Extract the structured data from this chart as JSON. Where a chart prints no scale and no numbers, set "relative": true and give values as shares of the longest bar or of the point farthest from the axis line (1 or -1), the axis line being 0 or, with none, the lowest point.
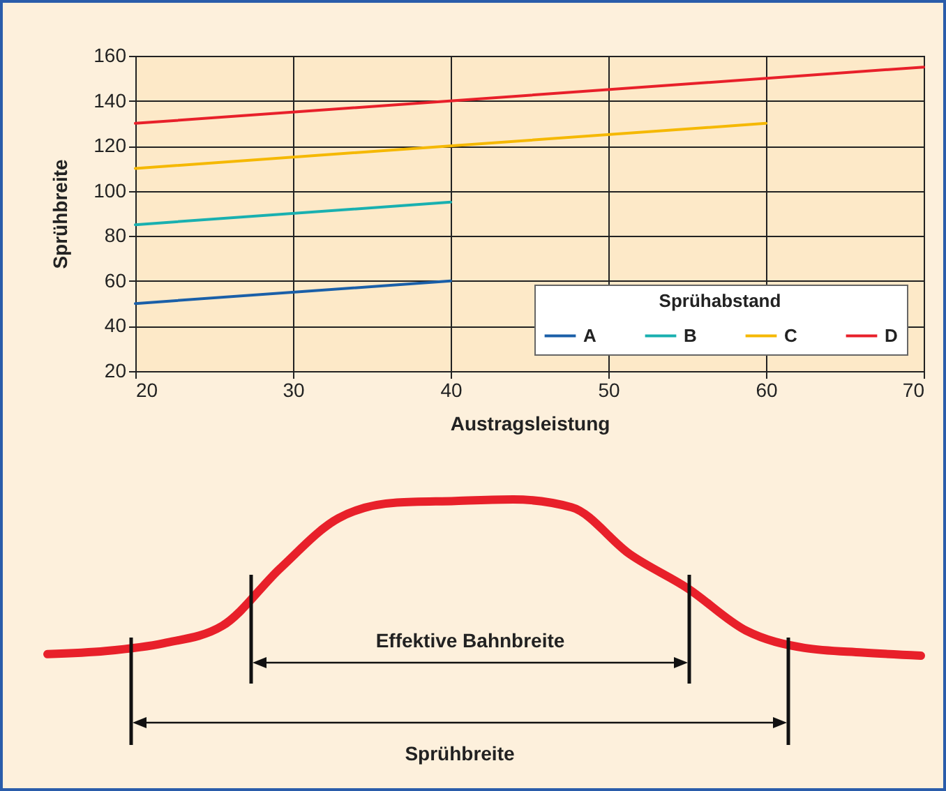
{
  "chart_data": [
    {
      "type": "line",
      "xlabel": "Austragsleistung",
      "ylabel": "Sprühbreite",
      "legend_title": "Sprühabstand",
      "xlim": [
        20,
        70
      ],
      "xticks": [
        20,
        30,
        40,
        50,
        60,
        70
      ],
      "ylim": [
        20,
        160
      ],
      "yticks": [
        20,
        40,
        60,
        80,
        100,
        120,
        140,
        160
      ],
      "grid": true,
      "legend": "bottom right",
      "series": [
        {
          "name": "A",
          "color": "#1a5fa8",
          "x": [
            20,
            40
          ],
          "values": [
            50,
            60
          ]
        },
        {
          "name": "B",
          "color": "#19b0b0",
          "x": [
            20,
            40
          ],
          "values": [
            85,
            95
          ]
        },
        {
          "name": "C",
          "color": "#f5b800",
          "x": [
            20,
            60
          ],
          "values": [
            110,
            130
          ]
        },
        {
          "name": "D",
          "color": "#e8202a",
          "x": [
            20,
            70
          ],
          "values": [
            130,
            155
          ]
        }
      ]
    },
    {
      "type": "line",
      "relative": true,
      "categories": [
        null,
        null,
        null,
        null,
        null,
        null,
        null,
        null,
        null,
        null,
        null,
        null,
        null,
        null,
        null,
        null
      ],
      "annotations": [
        "Effektive Bahnbreite",
        "Sprühbreite"
      ],
      "series": [
        {
          "color": "#e8202a",
          "values": [
            0.01,
            0.03,
            0.08,
            0.19,
            0.56,
            0.88,
            0.98,
            0.99,
            1,
            0.95,
            0.65,
            0.43,
            0.16,
            0.05,
            0.02,
            0
          ]
        }
      ]
    }
  ]
}
